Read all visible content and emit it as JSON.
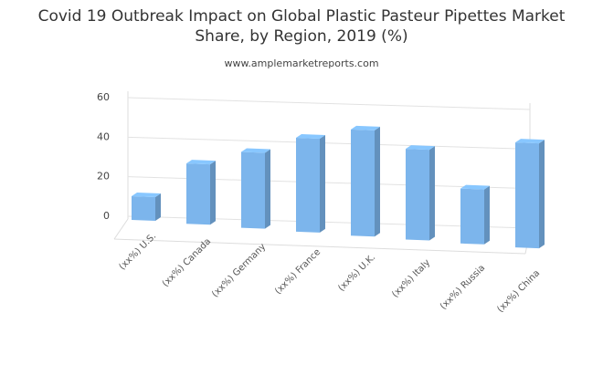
{
  "chart_data": {
    "type": "bar",
    "title": [
      "Covid 19 Outbreak Impact on Global Plastic Pasteur Pipettes Market",
      "Share, by Region, 2019 (%)"
    ],
    "subtitle": "www.amplemarketreports.com",
    "categories": [
      "(xx%) U.S.",
      "(xx%) Canada",
      "(xx%) Germany",
      "(xx%) France",
      "(xx%) U.K.",
      "(xx%) Italy",
      "(xx%) Russia",
      "(xx%) China"
    ],
    "values": [
      12,
      30,
      37,
      45,
      50,
      42,
      25,
      47
    ],
    "color": "#7cb5ec",
    "ylim": [
      0,
      60
    ],
    "yticks": [
      0,
      20,
      40,
      60
    ],
    "grid": true
  }
}
